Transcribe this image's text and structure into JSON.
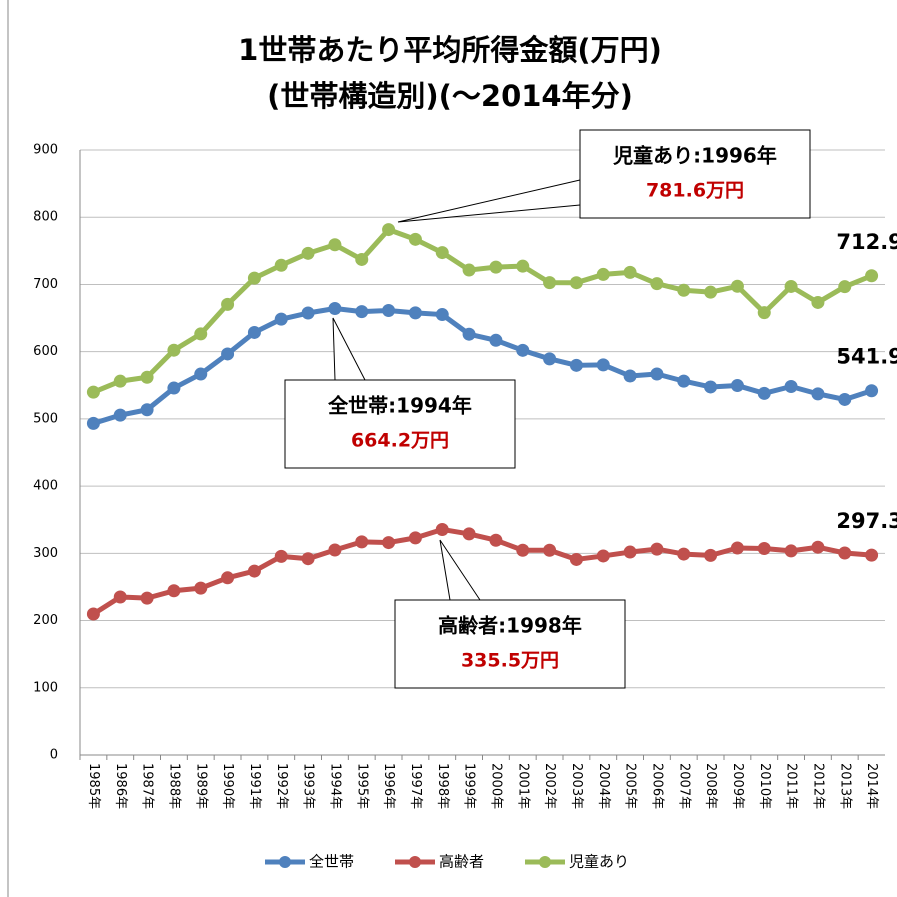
{
  "chart_data": {
    "type": "line",
    "title": [
      "1世帯あたり平均所得金額(万円)",
      "(世帯構造別)(～2014年分)"
    ],
    "categories": [
      "1985年",
      "1986年",
      "1987年",
      "1988年",
      "1989年",
      "1990年",
      "1991年",
      "1992年",
      "1993年",
      "1994年",
      "1995年",
      "1996年",
      "1997年",
      "1998年",
      "1999年",
      "2000年",
      "2001年",
      "2002年",
      "2003年",
      "2004年",
      "2005年",
      "2006年",
      "2007年",
      "2008年",
      "2009年",
      "2010年",
      "2011年",
      "2012年",
      "2013年",
      "2014年"
    ],
    "series": [
      {
        "name": "全世帯",
        "color": "#4f81bd",
        "values": [
          493.3,
          505.6,
          513.6,
          545.9,
          566.7,
          596.6,
          628.6,
          648.4,
          657.5,
          664.2,
          659.6,
          661.2,
          657.7,
          655.2,
          626.0,
          616.9,
          602.0,
          589.3,
          579.7,
          580.4,
          563.8,
          566.8,
          556.2,
          547.5,
          549.6,
          538.0,
          548.2,
          537.2,
          528.9,
          541.9
        ]
      },
      {
        "name": "高齢者",
        "color": "#c0504d",
        "values": [
          209.8,
          235.0,
          233.4,
          244.3,
          248.2,
          263.6,
          273.6,
          295.5,
          292.0,
          305.0,
          317.0,
          316.0,
          323.0,
          335.5,
          328.9,
          319.5,
          304.6,
          304.6,
          290.9,
          296.1,
          301.9,
          306.3,
          298.9,
          297.0,
          307.9,
          307.2,
          303.6,
          309.1,
          300.5,
          297.3
        ]
      },
      {
        "name": "児童あり",
        "color": "#9bbb59",
        "values": [
          539.8,
          556.1,
          561.9,
          602.2,
          626.4,
          670.4,
          709.4,
          728.6,
          746.3,
          759.0,
          737.2,
          781.6,
          767.1,
          747.4,
          721.4,
          725.8,
          727.2,
          702.7,
          702.6,
          714.9,
          718.0,
          701.2,
          691.4,
          688.5,
          697.3,
          658.1,
          697.0,
          673.2,
          696.7,
          712.9
        ]
      }
    ],
    "annotations": [
      {
        "label": "児童あり:1996年",
        "value_label": "781.6万円"
      },
      {
        "label": "全世帯:1994年",
        "value_label": "664.2万円"
      },
      {
        "label": "高齢者:1998年",
        "value_label": "335.5万円"
      }
    ],
    "ylim": [
      0,
      900
    ],
    "yticks": [
      0,
      100,
      200,
      300,
      400,
      500,
      600,
      700,
      800,
      900
    ],
    "grid": true,
    "legend": "bottom"
  }
}
